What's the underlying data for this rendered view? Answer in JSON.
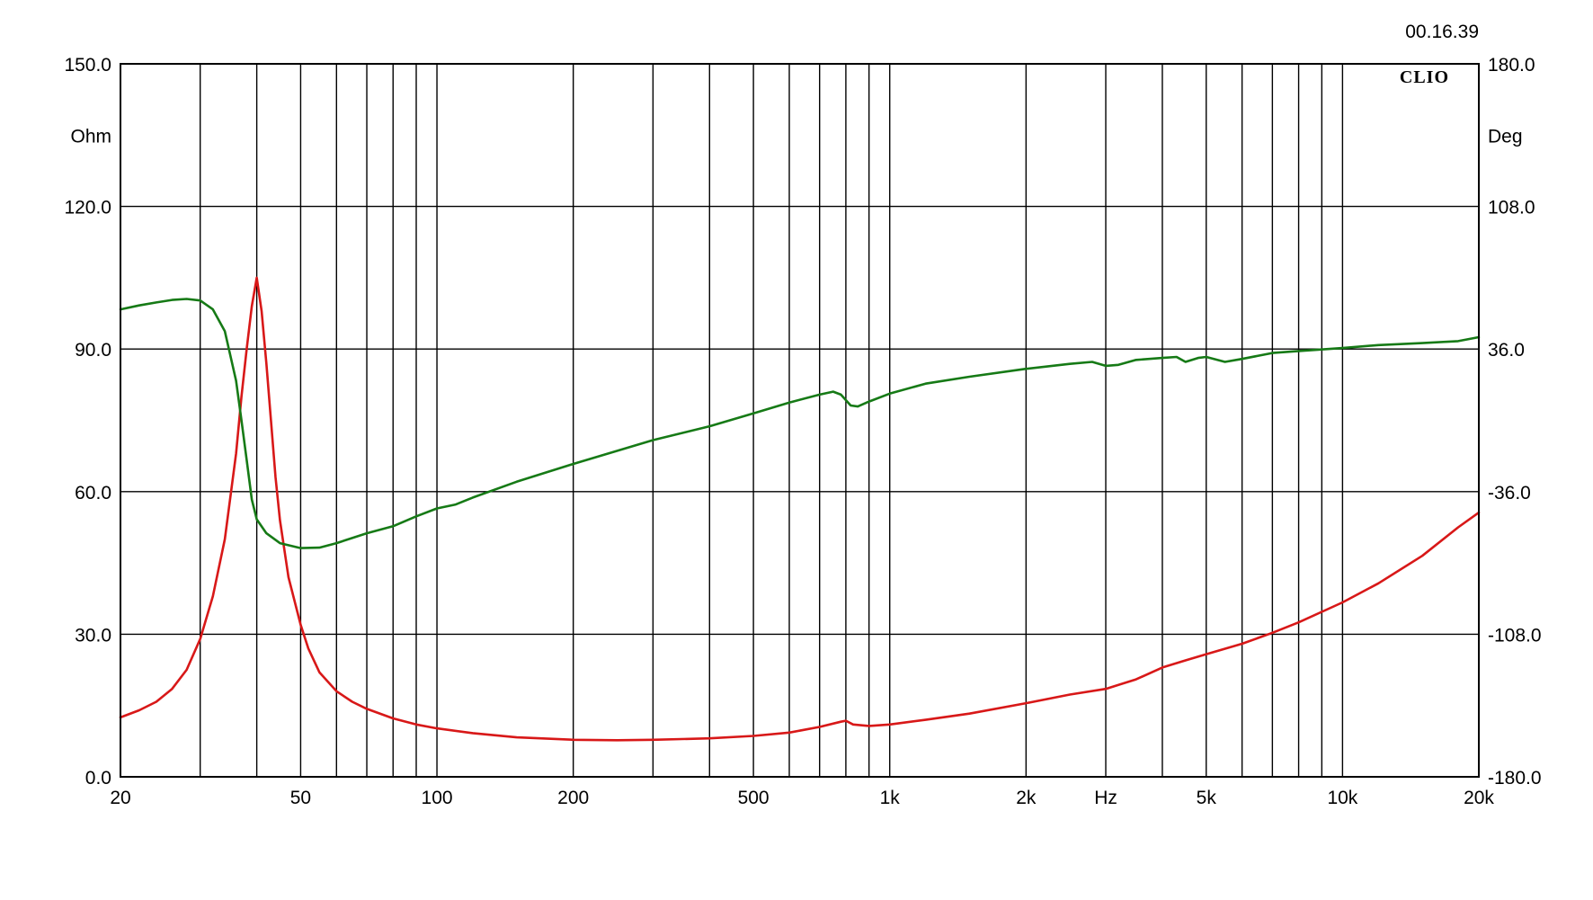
{
  "timestamp": "00.16.39",
  "brand": "CLIO",
  "colors": {
    "background": "#ffffff",
    "grid": "#000000",
    "impedance": "#d81818",
    "phase": "#167a16"
  },
  "chart_data": {
    "type": "line",
    "x_scale": "log",
    "xlim": [
      20,
      20000
    ],
    "xlabel": "Hz",
    "x_ticks": [
      {
        "value": 20,
        "label": "20"
      },
      {
        "value": 50,
        "label": "50"
      },
      {
        "value": 100,
        "label": "100"
      },
      {
        "value": 200,
        "label": "200"
      },
      {
        "value": 500,
        "label": "500"
      },
      {
        "value": 1000,
        "label": "1k"
      },
      {
        "value": 2000,
        "label": "2k"
      },
      {
        "value": 5000,
        "label": "5k"
      },
      {
        "value": 10000,
        "label": "10k"
      },
      {
        "value": 20000,
        "label": "20k"
      }
    ],
    "x_grid": [
      20,
      30,
      40,
      50,
      60,
      70,
      80,
      90,
      100,
      200,
      300,
      400,
      500,
      600,
      700,
      800,
      900,
      1000,
      2000,
      3000,
      4000,
      5000,
      6000,
      7000,
      8000,
      9000,
      10000,
      20000
    ],
    "y_left": {
      "label": "Ohm",
      "range": [
        0,
        150
      ],
      "ticks": [
        {
          "value": 0,
          "label": "0.0"
        },
        {
          "value": 30,
          "label": "30.0"
        },
        {
          "value": 60,
          "label": "60.0"
        },
        {
          "value": 90,
          "label": "90.0"
        },
        {
          "value": 120,
          "label": "120.0"
        },
        {
          "value": 150,
          "label": "150.0"
        }
      ]
    },
    "y_right": {
      "label": "Deg",
      "range": [
        -180,
        180
      ],
      "ticks": [
        {
          "value": -180,
          "label": "-180.0"
        },
        {
          "value": -108,
          "label": "-108.0"
        },
        {
          "value": -36,
          "label": "-36.0"
        },
        {
          "value": 36,
          "label": "36.0"
        },
        {
          "value": 108,
          "label": "108.0"
        },
        {
          "value": 180,
          "label": "180.0"
        }
      ]
    },
    "grid": true,
    "series": [
      {
        "axis": "left",
        "color": "#d81818",
        "points": [
          [
            20,
            12.5
          ],
          [
            22,
            14
          ],
          [
            24,
            15.8
          ],
          [
            26,
            18.5
          ],
          [
            28,
            22.5
          ],
          [
            30,
            29
          ],
          [
            32,
            38
          ],
          [
            34,
            50
          ],
          [
            36,
            68
          ],
          [
            37,
            80
          ],
          [
            38,
            90
          ],
          [
            39,
            99
          ],
          [
            40,
            105
          ],
          [
            41,
            98
          ],
          [
            42,
            87
          ],
          [
            43,
            75
          ],
          [
            44,
            63
          ],
          [
            45,
            54
          ],
          [
            47,
            42
          ],
          [
            50,
            32
          ],
          [
            52,
            27
          ],
          [
            55,
            22
          ],
          [
            60,
            18
          ],
          [
            65,
            15.8
          ],
          [
            70,
            14.3
          ],
          [
            80,
            12.3
          ],
          [
            90,
            11
          ],
          [
            100,
            10.2
          ],
          [
            120,
            9.2
          ],
          [
            150,
            8.3
          ],
          [
            200,
            7.8
          ],
          [
            250,
            7.7
          ],
          [
            300,
            7.8
          ],
          [
            400,
            8.1
          ],
          [
            500,
            8.6
          ],
          [
            600,
            9.3
          ],
          [
            700,
            10.5
          ],
          [
            780,
            11.6
          ],
          [
            800,
            11.8
          ],
          [
            830,
            11
          ],
          [
            900,
            10.7
          ],
          [
            1000,
            11
          ],
          [
            1200,
            12
          ],
          [
            1500,
            13.3
          ],
          [
            2000,
            15.5
          ],
          [
            2500,
            17.3
          ],
          [
            3000,
            18.5
          ],
          [
            3500,
            20.5
          ],
          [
            4000,
            23
          ],
          [
            4500,
            24.5
          ],
          [
            5000,
            25.8
          ],
          [
            6000,
            28
          ],
          [
            7000,
            30.3
          ],
          [
            8000,
            32.5
          ],
          [
            10000,
            36.7
          ],
          [
            12000,
            40.7
          ],
          [
            15000,
            46.5
          ],
          [
            18000,
            52.5
          ],
          [
            20000,
            55.6
          ]
        ]
      },
      {
        "axis": "right",
        "color": "#167a16",
        "points": [
          [
            20,
            56
          ],
          [
            22,
            58
          ],
          [
            24,
            59.5
          ],
          [
            26,
            60.8
          ],
          [
            28,
            61.3
          ],
          [
            30,
            60.5
          ],
          [
            32,
            56
          ],
          [
            34,
            45
          ],
          [
            36,
            20
          ],
          [
            37,
            0
          ],
          [
            38,
            -20
          ],
          [
            39,
            -40
          ],
          [
            40,
            -50
          ],
          [
            42,
            -57
          ],
          [
            45,
            -62
          ],
          [
            50,
            -64.5
          ],
          [
            55,
            -64.3
          ],
          [
            60,
            -62
          ],
          [
            70,
            -57
          ],
          [
            80,
            -53.5
          ],
          [
            90,
            -48.5
          ],
          [
            100,
            -44.5
          ],
          [
            110,
            -42.5
          ],
          [
            120,
            -39
          ],
          [
            150,
            -31
          ],
          [
            200,
            -22
          ],
          [
            300,
            -10
          ],
          [
            400,
            -3
          ],
          [
            500,
            3.5
          ],
          [
            600,
            9
          ],
          [
            700,
            13
          ],
          [
            750,
            14.5
          ],
          [
            780,
            13
          ],
          [
            820,
            7.5
          ],
          [
            850,
            7
          ],
          [
            900,
            9.5
          ],
          [
            1000,
            13.5
          ],
          [
            1200,
            18.5
          ],
          [
            1500,
            22
          ],
          [
            2000,
            26
          ],
          [
            2500,
            28.5
          ],
          [
            2800,
            29.5
          ],
          [
            3000,
            27.5
          ],
          [
            3200,
            28
          ],
          [
            3500,
            30.5
          ],
          [
            4000,
            31.5
          ],
          [
            4300,
            32
          ],
          [
            4500,
            29.5
          ],
          [
            4800,
            31.5
          ],
          [
            5000,
            32
          ],
          [
            5200,
            31
          ],
          [
            5500,
            29.5
          ],
          [
            6000,
            31
          ],
          [
            7000,
            34
          ],
          [
            8000,
            35
          ],
          [
            10000,
            36.5
          ],
          [
            12000,
            38
          ],
          [
            15000,
            39
          ],
          [
            18000,
            40
          ],
          [
            20000,
            42
          ]
        ]
      }
    ]
  }
}
